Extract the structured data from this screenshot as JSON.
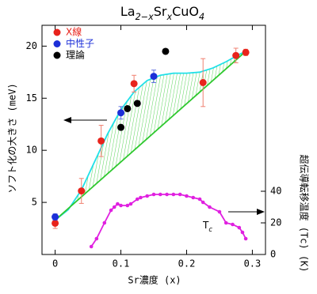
{
  "chart_data": {
    "type": "scatter",
    "title": [
      {
        "text": "La"
      },
      {
        "text": "2−x",
        "sub": true
      },
      {
        "text": "Sr"
      },
      {
        "text": "x",
        "sub": true
      },
      {
        "text": "CuO"
      },
      {
        "text": "4",
        "sub": true
      }
    ],
    "x_label": "Sr濃度 (x)",
    "y_label": "ソフト化の大きさ (meV)",
    "y2_label": "超伝導転移温度 (Tc) (K)",
    "xlim": [
      -0.02,
      0.32
    ],
    "xticks": [
      0,
      0.1,
      0.2,
      0.3
    ],
    "ylim": [
      0,
      22
    ],
    "yticks": [
      5,
      10,
      15,
      20
    ],
    "y2lim": [
      0,
      145
    ],
    "y2ticks": [
      0,
      20,
      40
    ],
    "annotation": [
      {
        "text": "T"
      },
      {
        "text": "c",
        "sub": true
      }
    ],
    "series": [
      {
        "name": "X線",
        "color": "#e8231c",
        "style": "markers",
        "x": [
          0,
          0.04,
          0.07,
          0.12,
          0.225,
          0.275,
          0.29
        ],
        "values": [
          3.0,
          6.1,
          10.9,
          16.4,
          16.5,
          19.1,
          19.4
        ],
        "errors": [
          0.5,
          1.2,
          1.5,
          0.8,
          2.3,
          0.7,
          0.3
        ],
        "error_color": "#f08070"
      },
      {
        "name": "中性子",
        "color": "#1c2fd8",
        "style": "markers",
        "x": [
          0,
          0.1,
          0.15
        ],
        "values": [
          3.6,
          13.6,
          17.1
        ],
        "errors": [
          0.3,
          0.6,
          0.6
        ],
        "error_color": "#6070e0"
      },
      {
        "name": "理論",
        "color": "#000000",
        "style": "markers",
        "x": [
          0.1,
          0.11,
          0.125,
          0.168
        ],
        "values": [
          12.2,
          14.0,
          14.5,
          19.5
        ]
      },
      {
        "color": "#20e0e8",
        "style": "line",
        "x": [
          0,
          0.02,
          0.04,
          0.06,
          0.08,
          0.1,
          0.12,
          0.14,
          0.16,
          0.18,
          0.2,
          0.22,
          0.24,
          0.26,
          0.28,
          0.29
        ],
        "values": [
          3.3,
          4.3,
          6.2,
          8.9,
          11.6,
          13.9,
          15.6,
          16.7,
          17.2,
          17.4,
          17.4,
          17.5,
          17.9,
          18.5,
          19.2,
          19.5
        ]
      },
      {
        "color": "#2ec82e",
        "style": "line",
        "x": [
          0,
          0.29
        ],
        "values": [
          3.3,
          19.5
        ]
      },
      {
        "color": "#e020e0",
        "style": "line-markers",
        "axis": "y2",
        "x": [
          0.055,
          0.063,
          0.075,
          0.085,
          0.09,
          0.095,
          0.1,
          0.11,
          0.115,
          0.125,
          0.13,
          0.14,
          0.15,
          0.16,
          0.17,
          0.18,
          0.19,
          0.2,
          0.21,
          0.22,
          0.225,
          0.235,
          0.25,
          0.26,
          0.27,
          0.28,
          0.285,
          0.29
        ],
        "values": [
          5,
          10,
          20,
          28,
          30,
          32,
          31,
          31,
          32,
          35,
          36,
          37,
          38,
          38,
          38,
          38,
          38,
          37,
          36,
          35,
          33,
          30,
          27,
          20,
          19,
          17,
          14,
          10
        ]
      }
    ]
  }
}
